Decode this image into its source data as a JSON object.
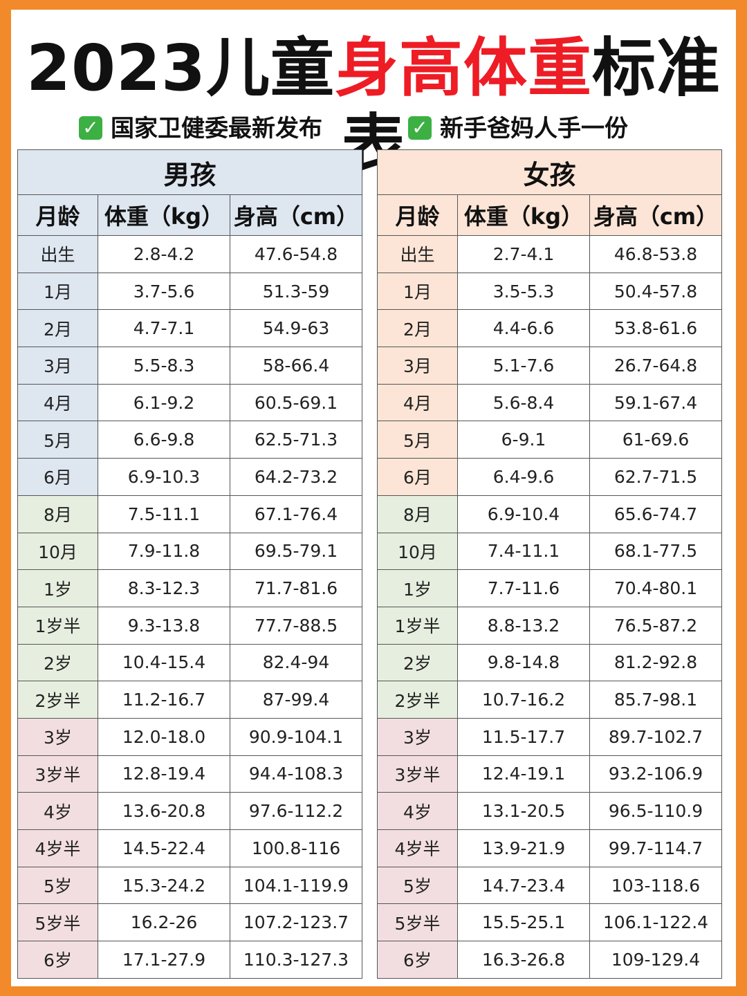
{
  "title": {
    "part1": "2023儿童",
    "part2": "身高体重",
    "part3": "标准表"
  },
  "subtitles": [
    {
      "check": "✓",
      "text": "国家卫健委最新发布"
    },
    {
      "check": "✓",
      "text": "新手爸妈人手一份"
    }
  ],
  "colors": {
    "background": "#F28A2B",
    "title_accent": "#EE1C25",
    "boys_header": "#DEE6F0",
    "girls_header": "#FCE5D6",
    "band_green": "#E6EEDF",
    "band_pink": "#F2DEE0",
    "check_green": "#3CB043"
  },
  "columns": {
    "age": "月龄",
    "weight": "体重（kg）",
    "height": "身高（cm）"
  },
  "boys": {
    "label": "男孩",
    "rows": [
      [
        "出生",
        "2.8-4.2",
        "47.6-54.8"
      ],
      [
        "1月",
        "3.7-5.6",
        "51.3-59"
      ],
      [
        "2月",
        "4.7-7.1",
        "54.9-63"
      ],
      [
        "3月",
        "5.5-8.3",
        "58-66.4"
      ],
      [
        "4月",
        "6.1-9.2",
        "60.5-69.1"
      ],
      [
        "5月",
        "6.6-9.8",
        "62.5-71.3"
      ],
      [
        "6月",
        "6.9-10.3",
        "64.2-73.2"
      ],
      [
        "8月",
        "7.5-11.1",
        "67.1-76.4"
      ],
      [
        "10月",
        "7.9-11.8",
        "69.5-79.1"
      ],
      [
        "1岁",
        "8.3-12.3",
        "71.7-81.6"
      ],
      [
        "1岁半",
        "9.3-13.8",
        "77.7-88.5"
      ],
      [
        "2岁",
        "10.4-15.4",
        "82.4-94"
      ],
      [
        "2岁半",
        "11.2-16.7",
        "87-99.4"
      ],
      [
        "3岁",
        "12.0-18.0",
        "90.9-104.1"
      ],
      [
        "3岁半",
        "12.8-19.4",
        "94.4-108.3"
      ],
      [
        "4岁",
        "13.6-20.8",
        "97.6-112.2"
      ],
      [
        "4岁半",
        "14.5-22.4",
        "100.8-116"
      ],
      [
        "5岁",
        "15.3-24.2",
        "104.1-119.9"
      ],
      [
        "5岁半",
        "16.2-26",
        "107.2-123.7"
      ],
      [
        "6岁",
        "17.1-27.9",
        "110.3-127.3"
      ]
    ]
  },
  "girls": {
    "label": "女孩",
    "rows": [
      [
        "出生",
        "2.7-4.1",
        "46.8-53.8"
      ],
      [
        "1月",
        "3.5-5.3",
        "50.4-57.8"
      ],
      [
        "2月",
        "4.4-6.6",
        "53.8-61.6"
      ],
      [
        "3月",
        "5.1-7.6",
        "26.7-64.8"
      ],
      [
        "4月",
        "5.6-8.4",
        "59.1-67.4"
      ],
      [
        "5月",
        "6-9.1",
        "61-69.6"
      ],
      [
        "6月",
        "6.4-9.6",
        "62.7-71.5"
      ],
      [
        "8月",
        "6.9-10.4",
        "65.6-74.7"
      ],
      [
        "10月",
        "7.4-11.1",
        "68.1-77.5"
      ],
      [
        "1岁",
        "7.7-11.6",
        "70.4-80.1"
      ],
      [
        "1岁半",
        "8.8-13.2",
        "76.5-87.2"
      ],
      [
        "2岁",
        "9.8-14.8",
        "81.2-92.8"
      ],
      [
        "2岁半",
        "10.7-16.2",
        "85.7-98.1"
      ],
      [
        "3岁",
        "11.5-17.7",
        "89.7-102.7"
      ],
      [
        "3岁半",
        "12.4-19.1",
        "93.2-106.9"
      ],
      [
        "4岁",
        "13.1-20.5",
        "96.5-110.9"
      ],
      [
        "4岁半",
        "13.9-21.9",
        "99.7-114.7"
      ],
      [
        "5岁",
        "14.7-23.4",
        "103-118.6"
      ],
      [
        "5岁半",
        "15.5-25.1",
        "106.1-122.4"
      ],
      [
        "6岁",
        "16.3-26.8",
        "109-129.4"
      ]
    ]
  }
}
